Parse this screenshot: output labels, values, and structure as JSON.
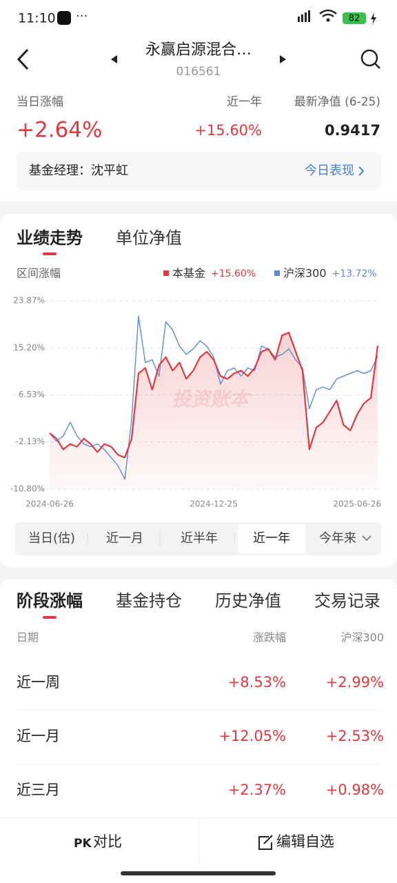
{
  "status_bar": {
    "time": "11:10",
    "battery": "82"
  },
  "header": {
    "title": "永赢启源混合…",
    "code": "016561"
  },
  "summary": {
    "labels": [
      "当日涨幅",
      "近一年",
      "最新净值 (6-25)"
    ],
    "values": [
      "+2.64%",
      "+15.60%",
      "0.9417"
    ]
  },
  "manager": {
    "label": "基金经理：沈平虹",
    "link": "今日表现"
  },
  "chart_tabs": [
    "业绩走势",
    "单位净值"
  ],
  "chart_data": {
    "type": "line",
    "subtitle": "区间涨幅",
    "watermark": "投资账本",
    "categories": [
      "2024-06-26",
      null,
      null,
      null,
      null,
      null,
      null,
      null,
      null,
      null,
      null,
      null,
      null,
      null,
      null,
      null,
      null,
      null,
      null,
      null,
      null,
      null,
      null,
      null,
      "2024-12-25",
      null,
      null,
      null,
      null,
      null,
      null,
      null,
      null,
      null,
      null,
      null,
      null,
      null,
      null,
      null,
      null,
      null,
      null,
      null,
      null,
      null,
      null,
      null,
      "2025-06-26"
    ],
    "series": [
      {
        "name": "本基金",
        "legend_value": "+15.60%",
        "color": "#e0393e",
        "values": [
          -0.5,
          -1.5,
          -3.5,
          -2.5,
          -3.0,
          -1.5,
          -2.5,
          -4.0,
          -2.5,
          -3.0,
          -4.5,
          -5.0,
          -1.5,
          10.5,
          11.5,
          7.5,
          12.0,
          13.5,
          11.0,
          12.5,
          9.5,
          11.0,
          13.5,
          14.5,
          13.0,
          10.0,
          9.5,
          10.5,
          11.0,
          10.0,
          11.5,
          14.5,
          15.0,
          13.0,
          17.5,
          18.0,
          14.5,
          11.0,
          -3.5,
          0.5,
          1.5,
          3.5,
          5.5,
          1.0,
          0.0,
          3.0,
          5.0,
          6.0,
          15.6
        ]
      },
      {
        "name": "沪深300",
        "legend_value": "+13.72%",
        "color": "#5b8bd8",
        "values": [
          -0.5,
          -2.0,
          -1.0,
          1.5,
          -1.0,
          -2.5,
          -3.0,
          -2.5,
          -3.5,
          -5.0,
          -6.5,
          -9.0,
          2.0,
          21.0,
          12.5,
          13.0,
          10.0,
          20.0,
          18.5,
          15.5,
          14.0,
          15.0,
          16.5,
          15.5,
          13.5,
          8.5,
          11.0,
          11.5,
          10.0,
          11.5,
          11.0,
          15.5,
          15.0,
          13.5,
          14.0,
          15.0,
          13.0,
          11.5,
          4.0,
          7.5,
          8.0,
          7.5,
          9.5,
          10.0,
          10.5,
          11.0,
          10.5,
          11.0,
          13.72
        ]
      }
    ],
    "ylim": [
      -10.8,
      23.87
    ],
    "yticks": [
      {
        "value": -10.8,
        "label": "-10.80%"
      },
      {
        "value": -2.13,
        "label": "-2.13%"
      },
      {
        "value": 6.53,
        "label": "6.53%"
      },
      {
        "value": 15.2,
        "label": "15.20%"
      },
      {
        "value": 23.87,
        "label": "23.87%"
      }
    ],
    "grid": true,
    "fill_first_series": true
  },
  "range_tabs": [
    "当日(估)",
    "近一月",
    "近半年",
    "近一年",
    "今年来"
  ],
  "stage_tabs": [
    "阶段涨幅",
    "基金持仓",
    "历史净值",
    "交易记录"
  ],
  "table": {
    "headers": [
      "日期",
      "涨跌幅",
      "沪深300"
    ],
    "rows": [
      [
        "近一周",
        "+8.53%",
        "+2.99%"
      ],
      [
        "近一月",
        "+12.05%",
        "+2.53%"
      ],
      [
        "近三月",
        "+2.37%",
        "+0.98%"
      ]
    ]
  },
  "bottom_bar": [
    "对比",
    "编辑自选"
  ]
}
